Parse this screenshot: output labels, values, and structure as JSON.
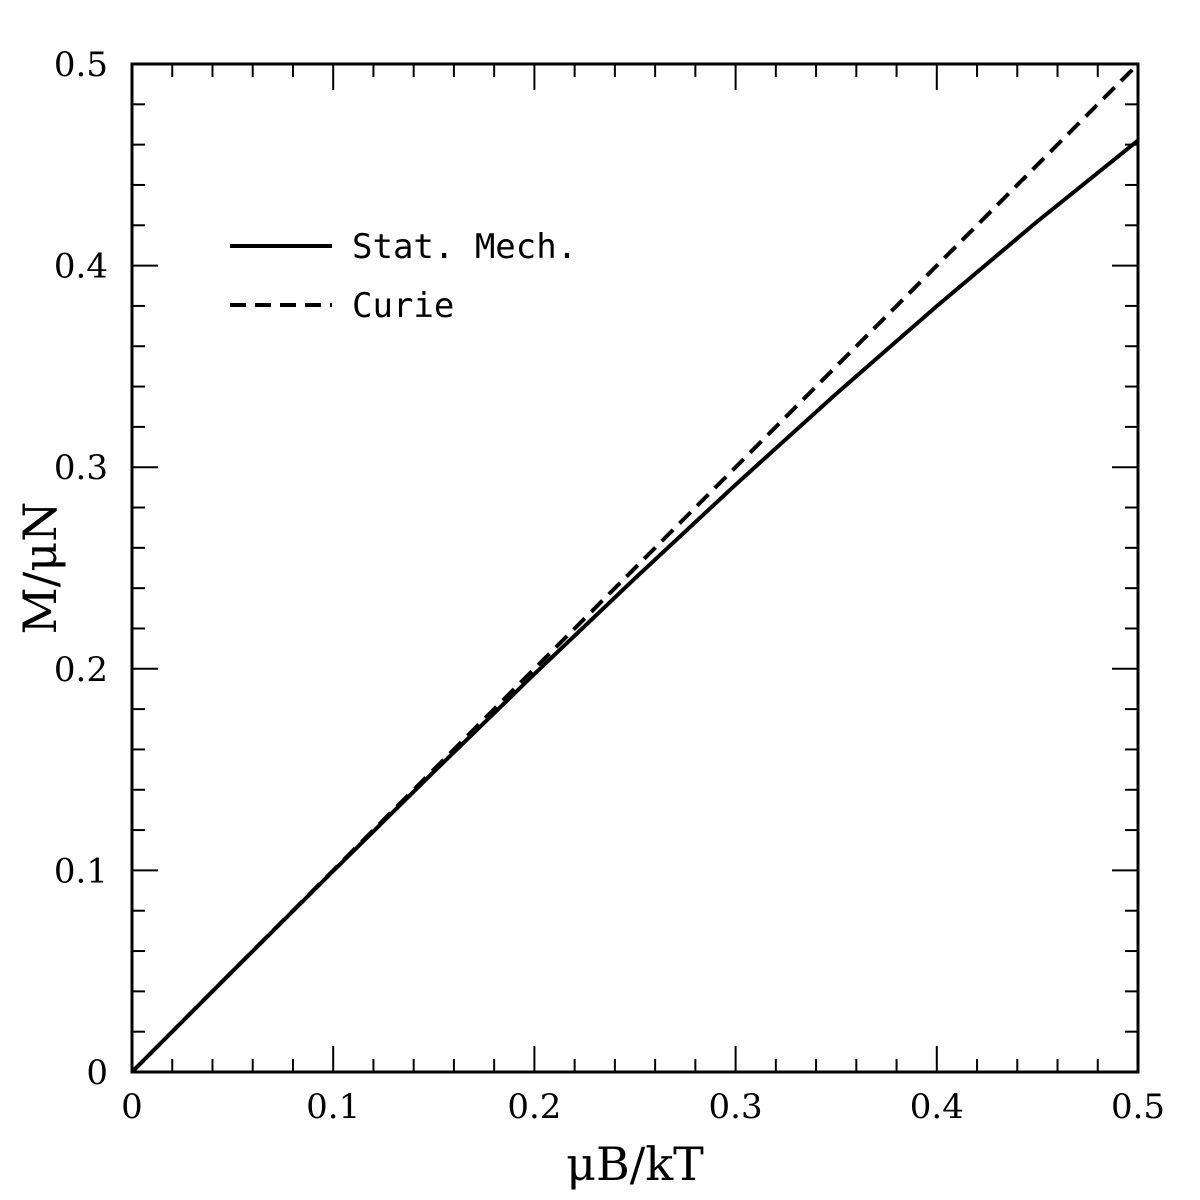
{
  "chart_data": {
    "type": "line",
    "xlabel": "μB/kT",
    "ylabel": "M/μN",
    "xlim": [
      0,
      0.5
    ],
    "ylim": [
      0,
      0.5
    ],
    "x_major_ticks": [
      0,
      0.1,
      0.2,
      0.3,
      0.4,
      0.5
    ],
    "y_major_ticks": [
      0,
      0.1,
      0.2,
      0.3,
      0.4,
      0.5
    ],
    "x_tick_labels": [
      "0",
      "0.1",
      "0.2",
      "0.3",
      "0.4",
      "0.5"
    ],
    "y_tick_labels": [
      "0",
      "0.1",
      "0.2",
      "0.3",
      "0.4",
      "0.5"
    ],
    "minor_tick_step": 0.02,
    "grid": false,
    "legend_position": "upper-left",
    "series": [
      {
        "name": "Stat. Mech.",
        "style": "solid",
        "color": "#000000",
        "x": [
          0,
          0.05,
          0.1,
          0.15,
          0.2,
          0.25,
          0.3,
          0.35,
          0.4,
          0.45,
          0.5
        ],
        "y": [
          0,
          0.05,
          0.0997,
          0.1489,
          0.1974,
          0.2449,
          0.2913,
          0.3364,
          0.3799,
          0.4219,
          0.4621
        ]
      },
      {
        "name": "Curie",
        "style": "dashed",
        "color": "#000000",
        "x": [
          0,
          0.5
        ],
        "y": [
          0,
          0.5
        ]
      }
    ]
  }
}
